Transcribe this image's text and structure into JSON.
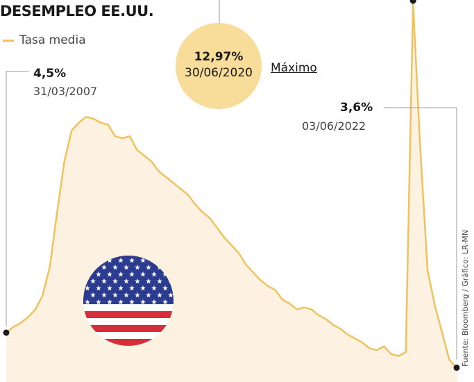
{
  "title": "DESEMPLEO EE.UU.",
  "legend": {
    "label": "Tasa media"
  },
  "source": "Fuente: Bloomberg / Gráfico: LR-MN",
  "colors": {
    "line": "#f0c25e",
    "fill": "#fdf1e2",
    "highlight": "#f8dc9a",
    "flag_red": "#d62f3a",
    "flag_blue": "#2b3b8f"
  },
  "annotations": {
    "start": {
      "value": "4,5%",
      "date": "31/03/2007"
    },
    "max": {
      "value": "12,97%",
      "date": "30/06/2020",
      "label": "Máximo"
    },
    "end": {
      "value": "3,6%",
      "date": "03/06/2022"
    }
  },
  "chart_data": {
    "type": "area",
    "series": [
      {
        "values": [
          4.5,
          4.65,
          4.75,
          4.9,
          5.1,
          5.45,
          6.2,
          7.6,
          8.9,
          9.7,
          9.9,
          10.05,
          10.0,
          9.9,
          9.85,
          9.55,
          9.5,
          9.55,
          9.2,
          9.05,
          8.9,
          8.65,
          8.5,
          8.35,
          8.2,
          8.05,
          7.8,
          7.6,
          7.45,
          7.2,
          6.95,
          6.75,
          6.55,
          6.25,
          6.05,
          5.85,
          5.7,
          5.6,
          5.35,
          5.25,
          5.1,
          5.15,
          5.1,
          4.95,
          4.85,
          4.7,
          4.6,
          4.45,
          4.35,
          4.25,
          4.1,
          4.05,
          4.15,
          3.95,
          3.9,
          4.0,
          12.97,
          9.2,
          6.1,
          5.2,
          4.5,
          3.8,
          3.6
        ]
      }
    ],
    "ylim": [
      3.5,
      13.0
    ]
  }
}
